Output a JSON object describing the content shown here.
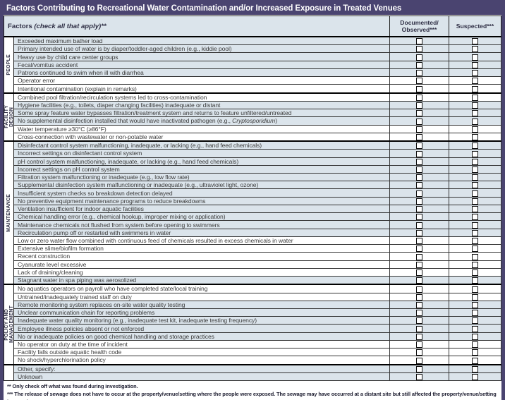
{
  "title": "Factors Contributing to Recreational Water Contamination and/or Increased Exposure in Treated Venues",
  "table_header": {
    "factors_bold": "Factors",
    "factors_italic": " (check all that apply)**",
    "documented": "Documented/\nObserved***",
    "suspected": "Suspected***"
  },
  "colors": {
    "accent_purple": "#4a4470",
    "row_shade": "#dbe4eb",
    "border_black": "#1c1c1c"
  },
  "sections": [
    {
      "name": "PEOPLE",
      "lines": [
        "PEOPLE"
      ],
      "rows": [
        {
          "label": "Exceeded maximum bather load",
          "shaded": true,
          "documented": false,
          "suspected": false
        },
        {
          "label": "Primary intended use of water is by diaper/toddler-aged children (e.g., kiddie pool)",
          "shaded": true,
          "documented": false,
          "suspected": false
        },
        {
          "label": "Heavy use by child care center groups",
          "shaded": true,
          "documented": false,
          "suspected": false
        },
        {
          "label": "Fecal/vomitus accident",
          "shaded": true,
          "documented": false,
          "suspected": false
        },
        {
          "label": "Patrons continued to swim when ill with diarrhea",
          "shaded": true,
          "documented": false,
          "suspected": false
        },
        {
          "label": "Operator error",
          "shaded": false,
          "documented": false,
          "suspected": false
        },
        {
          "label": "Intentional contamination (explain in remarks)",
          "shaded": false,
          "documented": false,
          "suspected": false
        }
      ]
    },
    {
      "name": "FACILITY DESIGN",
      "lines": [
        "FACILITY",
        "DESIGN"
      ],
      "rows": [
        {
          "label": "Combined pool filtration/recirculation systems led to cross-contamination",
          "shaded": false,
          "documented": false,
          "suspected": false
        },
        {
          "label": "Hygiene facilities (e.g., toilets, diaper changing facilities) inadequate or distant",
          "shaded": true,
          "documented": false,
          "suspected": false
        },
        {
          "label": "Some spray feature water bypasses filtration/treatment system and returns to feature unfiltered/untreated",
          "shaded": true,
          "documented": false,
          "suspected": false
        },
        {
          "label": "No supplemental disinfection installed that would have inactivated pathogen  (e.g., Cryptosporidium)",
          "italic_segment": "Cryptosporidium",
          "shaded": true,
          "documented": false,
          "suspected": false
        },
        {
          "label": "Water temperature ≥30°C (≥86°F)",
          "shaded": false,
          "documented": false,
          "suspected": false
        },
        {
          "label": "Cross-connection with wastewater or non-potable water",
          "shaded": false,
          "documented": false,
          "suspected": false
        }
      ]
    },
    {
      "name": "MAINTENANCE",
      "lines": [
        "MAINTENANCE"
      ],
      "rows": [
        {
          "label": "Disinfectant control system malfunctioning, inadequate, or lacking (e.g., hand feed chemicals)",
          "shaded": true,
          "documented": false,
          "suspected": false
        },
        {
          "label": "Incorrect settings on disinfectant control system",
          "shaded": true,
          "documented": false,
          "suspected": false
        },
        {
          "label": "pH control system malfunctioning, inadequate, or lacking (e.g., hand feed chemicals)",
          "shaded": true,
          "documented": false,
          "suspected": false
        },
        {
          "label": "Incorrect settings on pH control system",
          "shaded": true,
          "documented": false,
          "suspected": false
        },
        {
          "label": "Filtration system malfunctioning or inadequate (e.g., low flow rate)",
          "shaded": true,
          "documented": false,
          "suspected": false
        },
        {
          "label": "Supplemental disinfection system malfunctioning or inadequate (e.g., ultraviolet light, ozone)",
          "shaded": true,
          "documented": false,
          "suspected": false
        },
        {
          "label": "Insufficient system checks so breakdown detection delayed",
          "shaded": true,
          "documented": false,
          "suspected": false
        },
        {
          "label": "No preventive equipment maintenance programs to reduce breakdowns",
          "shaded": true,
          "documented": false,
          "suspected": false
        },
        {
          "label": "Ventilation insufficient for indoor aquatic facilities",
          "shaded": true,
          "documented": false,
          "suspected": false
        },
        {
          "label": "Chemical handling error (e.g., chemical hookup, improper mixing or application)",
          "shaded": true,
          "documented": false,
          "suspected": false
        },
        {
          "label": "Maintenance chemicals not flushed from system before opening to swimmers",
          "shaded": true,
          "documented": false,
          "suspected": false
        },
        {
          "label": "Recirculation pump off or restarted with swimmers in water",
          "shaded": true,
          "documented": false,
          "suspected": false
        },
        {
          "label": "Low or zero water flow combined with continuous feed of chemicals resulted in excess chemicals in water",
          "shaded": false,
          "documented": false,
          "suspected": false
        },
        {
          "label": "Extensive slime/biofilm formation",
          "shaded": false,
          "documented": false,
          "suspected": false
        },
        {
          "label": "Recent construction",
          "shaded": false,
          "documented": false,
          "suspected": false
        },
        {
          "label": "Cyanurate level excessive",
          "shaded": false,
          "documented": false,
          "suspected": false
        },
        {
          "label": "Lack of draining/cleaning",
          "shaded": false,
          "documented": false,
          "suspected": false
        },
        {
          "label": "Stagnant water in spa piping was aerosolized",
          "shaded": true,
          "documented": false,
          "suspected": false
        }
      ]
    },
    {
      "name": "POLICY AND MANAGEMENT",
      "lines": [
        "POLICY AND",
        "MANAGEMENT"
      ],
      "rows": [
        {
          "label": "No aquatics operators on payroll who have completed state/local training",
          "shaded": false,
          "documented": false,
          "suspected": false
        },
        {
          "label": "Untrained/inadequately trained staff on duty",
          "shaded": false,
          "documented": false,
          "suspected": false
        },
        {
          "label": "Remote monitoring system replaces on-site water quality testing",
          "shaded": true,
          "documented": false,
          "suspected": false
        },
        {
          "label": "Unclear communication chain for reporting problems",
          "shaded": true,
          "documented": false,
          "suspected": false
        },
        {
          "label": "Inadequate water quality monitoring (e.g., inadequate test kit, inadequate testing frequency)",
          "shaded": true,
          "documented": false,
          "suspected": false
        },
        {
          "label": "Employee illness policies absent or not enforced",
          "shaded": true,
          "documented": false,
          "suspected": false
        },
        {
          "label": "No or inadequate policies on good chemical handling and storage practices",
          "shaded": true,
          "documented": false,
          "suspected": false
        },
        {
          "label": "No operator on duty at the time of incident",
          "shaded": false,
          "documented": false,
          "suspected": false
        },
        {
          "label": "Facility falls outside aquatic health code",
          "shaded": false,
          "documented": false,
          "suspected": false
        },
        {
          "label": "No shock/hyperchlorination policy",
          "shaded": false,
          "documented": false,
          "suspected": false
        }
      ]
    },
    {
      "name": "",
      "lines": [],
      "rows": [
        {
          "label": "Other, specify:",
          "shaded": true,
          "documented": false,
          "suspected": false
        },
        {
          "label": "Unknown",
          "shaded": true,
          "documented": false,
          "suspected": false
        }
      ]
    }
  ],
  "footnotes": [
    "** Only check off what was found during investigation.",
    "*** The release of sewage does not have to occur at the property/venue/setting where the people were exposed. The sewage may have occurred at a distant site but still affected the property/venue/setting in question."
  ]
}
